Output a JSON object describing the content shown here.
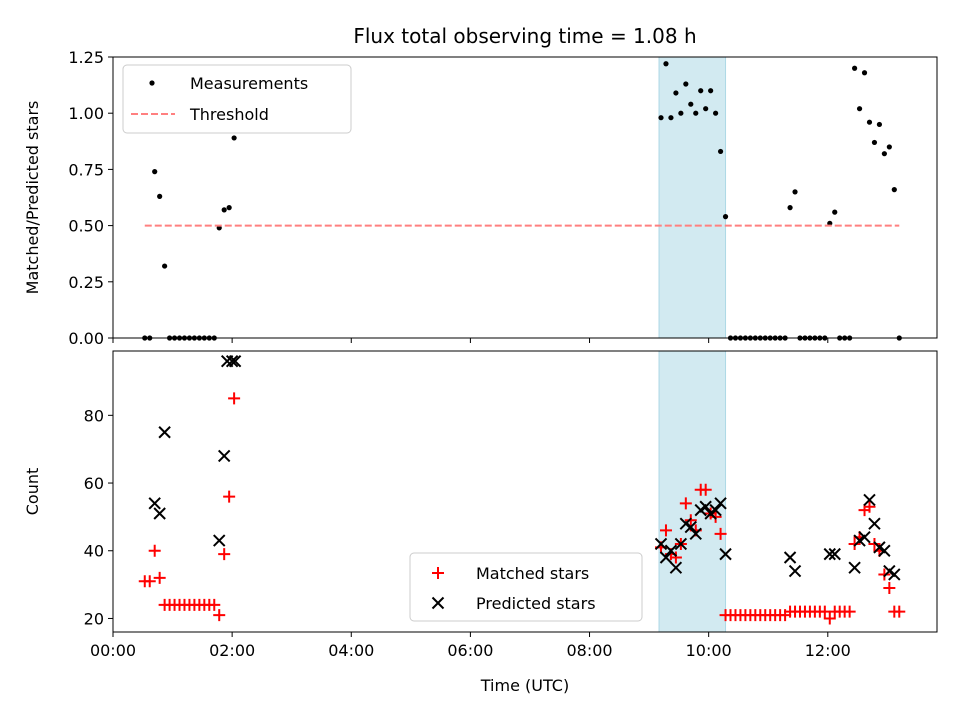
{
  "chart_data": [
    {
      "type": "scatter",
      "title": "Flux total observing time = 1.08 h",
      "ylabel": "Matched/Predicted stars",
      "xlabel": "",
      "xlim": [
        "00:00",
        "13:50"
      ],
      "ylim": [
        0,
        1.25
      ],
      "yticks": [
        0.0,
        0.25,
        0.5,
        0.75,
        1.0,
        1.25
      ],
      "ytick_labels": [
        "0.00",
        "0.25",
        "0.50",
        "0.75",
        "1.00",
        "1.25"
      ],
      "legend_position": "top-left",
      "grid": false,
      "highlight_span": {
        "x_start": "09:10",
        "x_end": "10:17",
        "color": "#add8e6"
      },
      "series": [
        {
          "name": "Measurements",
          "marker": "dot",
          "color": "#000000",
          "points": [
            [
              "00:32",
              0.0
            ],
            [
              "00:37",
              0.0
            ],
            [
              "00:42",
              0.74
            ],
            [
              "00:47",
              0.63
            ],
            [
              "00:52",
              0.32
            ],
            [
              "00:57",
              0.0
            ],
            [
              "01:02",
              0.0
            ],
            [
              "01:07",
              0.0
            ],
            [
              "01:12",
              0.0
            ],
            [
              "01:17",
              0.0
            ],
            [
              "01:22",
              0.0
            ],
            [
              "01:27",
              0.0
            ],
            [
              "01:32",
              0.0
            ],
            [
              "01:37",
              0.0
            ],
            [
              "01:42",
              0.0
            ],
            [
              "01:47",
              0.49
            ],
            [
              "01:52",
              0.57
            ],
            [
              "01:57",
              0.58
            ],
            [
              "02:02",
              0.89
            ],
            [
              "09:12",
              0.98
            ],
            [
              "09:17",
              1.22
            ],
            [
              "09:22",
              0.98
            ],
            [
              "09:27",
              1.09
            ],
            [
              "09:32",
              1.0
            ],
            [
              "09:37",
              1.13
            ],
            [
              "09:42",
              1.04
            ],
            [
              "09:47",
              1.0
            ],
            [
              "09:52",
              1.1
            ],
            [
              "09:57",
              1.02
            ],
            [
              "10:02",
              1.1
            ],
            [
              "10:07",
              1.0
            ],
            [
              "10:12",
              0.83
            ],
            [
              "10:17",
              0.54
            ],
            [
              "10:22",
              0.0
            ],
            [
              "10:27",
              0.0
            ],
            [
              "10:32",
              0.0
            ],
            [
              "10:37",
              0.0
            ],
            [
              "10:42",
              0.0
            ],
            [
              "10:47",
              0.0
            ],
            [
              "10:52",
              0.0
            ],
            [
              "10:57",
              0.0
            ],
            [
              "11:02",
              0.0
            ],
            [
              "11:07",
              0.0
            ],
            [
              "11:12",
              0.0
            ],
            [
              "11:17",
              0.0
            ],
            [
              "11:22",
              0.58
            ],
            [
              "11:27",
              0.65
            ],
            [
              "11:32",
              0.0
            ],
            [
              "11:37",
              0.0
            ],
            [
              "11:42",
              0.0
            ],
            [
              "11:47",
              0.0
            ],
            [
              "11:52",
              0.0
            ],
            [
              "11:57",
              0.0
            ],
            [
              "12:02",
              0.51
            ],
            [
              "12:07",
              0.56
            ],
            [
              "12:12",
              0.0
            ],
            [
              "12:17",
              0.0
            ],
            [
              "12:22",
              0.0
            ],
            [
              "12:27",
              1.2
            ],
            [
              "12:32",
              1.02
            ],
            [
              "12:37",
              1.18
            ],
            [
              "12:42",
              0.96
            ],
            [
              "12:47",
              0.87
            ],
            [
              "12:52",
              0.95
            ],
            [
              "12:57",
              0.82
            ],
            [
              "13:02",
              0.85
            ],
            [
              "13:07",
              0.66
            ],
            [
              "13:12",
              0.0
            ]
          ]
        },
        {
          "name": "Threshold",
          "marker": "dashed-line",
          "color": "#ff8080",
          "points": [
            [
              "00:32",
              0.5
            ],
            [
              "13:12",
              0.5
            ]
          ]
        }
      ]
    },
    {
      "type": "scatter",
      "title": "",
      "ylabel": "Count",
      "xlabel": "Time (UTC)",
      "xlim": [
        "00:00",
        "13:50"
      ],
      "ylim": [
        16,
        99
      ],
      "yticks": [
        20,
        40,
        60,
        80
      ],
      "ytick_labels": [
        "20",
        "40",
        "60",
        "80"
      ],
      "xticks": [
        "00:00",
        "02:00",
        "04:00",
        "06:00",
        "08:00",
        "10:00",
        "12:00"
      ],
      "xtick_labels": [
        "00:00",
        "02:00",
        "04:00",
        "06:00",
        "08:00",
        "10:00",
        "12:00"
      ],
      "legend_position": "lower-center",
      "grid": false,
      "highlight_span": {
        "x_start": "09:10",
        "x_end": "10:17",
        "color": "#add8e6"
      },
      "series": [
        {
          "name": "Matched stars",
          "marker": "plus",
          "color": "#ff0000",
          "points": [
            [
              "00:32",
              31
            ],
            [
              "00:37",
              31
            ],
            [
              "00:42",
              40
            ],
            [
              "00:47",
              32
            ],
            [
              "00:52",
              24
            ],
            [
              "00:57",
              24
            ],
            [
              "01:02",
              24
            ],
            [
              "01:07",
              24
            ],
            [
              "01:12",
              24
            ],
            [
              "01:17",
              24
            ],
            [
              "01:22",
              24
            ],
            [
              "01:27",
              24
            ],
            [
              "01:32",
              24
            ],
            [
              "01:37",
              24
            ],
            [
              "01:42",
              24
            ],
            [
              "01:47",
              21
            ],
            [
              "01:52",
              39
            ],
            [
              "01:57",
              56
            ],
            [
              "02:02",
              85
            ],
            [
              "09:12",
              41
            ],
            [
              "09:17",
              46
            ],
            [
              "09:22",
              39
            ],
            [
              "09:27",
              38
            ],
            [
              "09:32",
              42
            ],
            [
              "09:37",
              54
            ],
            [
              "09:42",
              49
            ],
            [
              "09:47",
              46
            ],
            [
              "09:52",
              58
            ],
            [
              "09:57",
              58
            ],
            [
              "10:02",
              51
            ],
            [
              "10:07",
              50
            ],
            [
              "10:12",
              45
            ],
            [
              "10:17",
              21
            ],
            [
              "10:22",
              21
            ],
            [
              "10:27",
              21
            ],
            [
              "10:32",
              21
            ],
            [
              "10:37",
              21
            ],
            [
              "10:42",
              21
            ],
            [
              "10:47",
              21
            ],
            [
              "10:52",
              21
            ],
            [
              "10:57",
              21
            ],
            [
              "11:02",
              21
            ],
            [
              "11:07",
              21
            ],
            [
              "11:12",
              21
            ],
            [
              "11:17",
              21
            ],
            [
              "11:22",
              22
            ],
            [
              "11:27",
              22
            ],
            [
              "11:32",
              22
            ],
            [
              "11:37",
              22
            ],
            [
              "11:42",
              22
            ],
            [
              "11:47",
              22
            ],
            [
              "11:52",
              22
            ],
            [
              "11:57",
              22
            ],
            [
              "12:02",
              20
            ],
            [
              "12:07",
              22
            ],
            [
              "12:12",
              22
            ],
            [
              "12:17",
              22
            ],
            [
              "12:22",
              22
            ],
            [
              "12:27",
              42
            ],
            [
              "12:32",
              44
            ],
            [
              "12:37",
              52
            ],
            [
              "12:42",
              53
            ],
            [
              "12:47",
              42
            ],
            [
              "12:52",
              40
            ],
            [
              "12:57",
              33
            ],
            [
              "13:02",
              29
            ],
            [
              "13:07",
              22
            ],
            [
              "13:12",
              22
            ]
          ]
        },
        {
          "name": "Predicted stars",
          "marker": "x",
          "color": "#000000",
          "points": [
            [
              "00:42",
              54
            ],
            [
              "00:47",
              51
            ],
            [
              "00:52",
              75
            ],
            [
              "01:47",
              43
            ],
            [
              "01:52",
              68
            ],
            [
              "01:55",
              96
            ],
            [
              "02:00",
              96
            ],
            [
              "02:03",
              96
            ],
            [
              "09:12",
              42
            ],
            [
              "09:17",
              38
            ],
            [
              "09:22",
              40
            ],
            [
              "09:27",
              35
            ],
            [
              "09:32",
              42
            ],
            [
              "09:37",
              48
            ],
            [
              "09:42",
              47
            ],
            [
              "09:47",
              45
            ],
            [
              "09:52",
              52
            ],
            [
              "09:57",
              53
            ],
            [
              "10:02",
              51
            ],
            [
              "10:07",
              52
            ],
            [
              "10:12",
              54
            ],
            [
              "10:17",
              39
            ],
            [
              "11:22",
              38
            ],
            [
              "11:27",
              34
            ],
            [
              "12:02",
              39
            ],
            [
              "12:07",
              39
            ],
            [
              "12:27",
              35
            ],
            [
              "12:32",
              43
            ],
            [
              "12:37",
              44
            ],
            [
              "12:42",
              55
            ],
            [
              "12:47",
              48
            ],
            [
              "12:52",
              41
            ],
            [
              "12:57",
              40
            ],
            [
              "13:02",
              34
            ],
            [
              "13:07",
              33
            ]
          ]
        }
      ]
    }
  ]
}
